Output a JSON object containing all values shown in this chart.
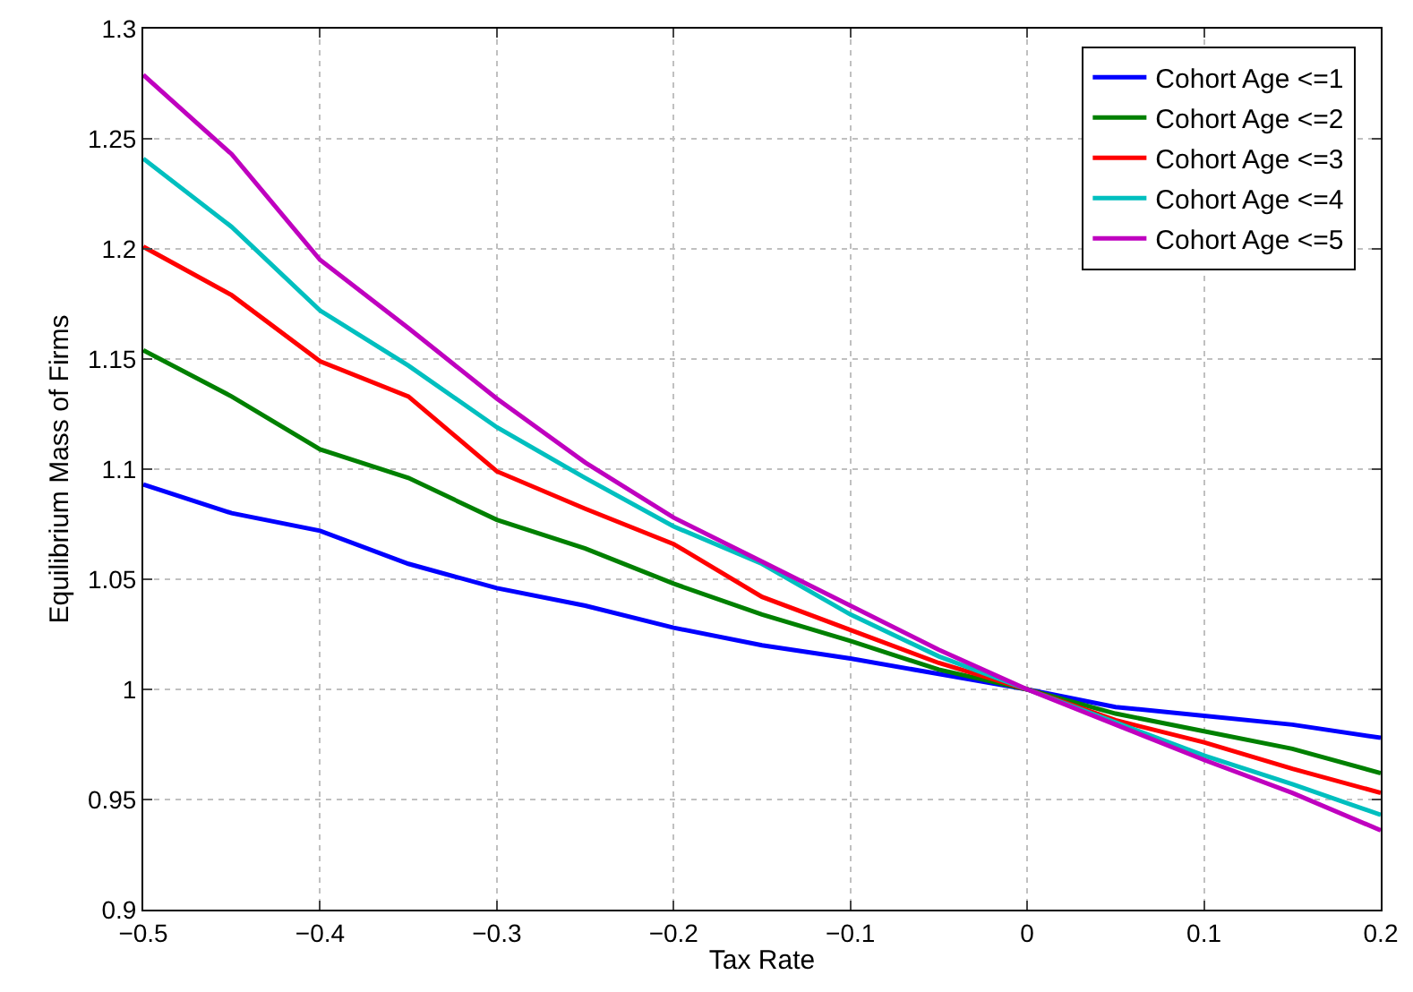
{
  "chart_data": {
    "type": "line",
    "xlabel": "Tax Rate",
    "ylabel": "Equilibrium Mass of Firms",
    "x": [
      -0.5,
      -0.45,
      -0.4,
      -0.35,
      -0.3,
      -0.25,
      -0.2,
      -0.15,
      -0.1,
      -0.05,
      0,
      0.05,
      0.1,
      0.15,
      0.2
    ],
    "series": [
      {
        "name": "Cohort Age <=1",
        "color": "#0000ff",
        "values": [
          1.093,
          1.08,
          1.072,
          1.057,
          1.046,
          1.038,
          1.028,
          1.02,
          1.014,
          1.007,
          1.0,
          0.992,
          0.988,
          0.984,
          0.978
        ]
      },
      {
        "name": "Cohort Age <=2",
        "color": "#008000",
        "values": [
          1.154,
          1.133,
          1.109,
          1.096,
          1.077,
          1.064,
          1.048,
          1.034,
          1.022,
          1.009,
          1.0,
          0.989,
          0.981,
          0.973,
          0.962
        ]
      },
      {
        "name": "Cohort Age <=3",
        "color": "#ff0000",
        "values": [
          1.201,
          1.179,
          1.149,
          1.133,
          1.099,
          1.082,
          1.066,
          1.042,
          1.027,
          1.012,
          1.0,
          0.986,
          0.976,
          0.964,
          0.953
        ]
      },
      {
        "name": "Cohort Age <=4",
        "color": "#00bfbf",
        "values": [
          1.241,
          1.21,
          1.172,
          1.147,
          1.119,
          1.096,
          1.074,
          1.057,
          1.034,
          1.015,
          1.0,
          0.985,
          0.97,
          0.957,
          0.943
        ]
      },
      {
        "name": "Cohort Age <=5",
        "color": "#bf00bf",
        "values": [
          1.279,
          1.243,
          1.195,
          1.164,
          1.132,
          1.103,
          1.078,
          1.058,
          1.038,
          1.018,
          1.0,
          0.984,
          0.968,
          0.953,
          0.936
        ]
      }
    ],
    "xlim": [
      -0.5,
      0.2
    ],
    "xticks": [
      {
        "value": -0.5,
        "label": "−0.5"
      },
      {
        "value": -0.4,
        "label": "−0.4"
      },
      {
        "value": -0.3,
        "label": "−0.3"
      },
      {
        "value": -0.2,
        "label": "−0.2"
      },
      {
        "value": -0.1,
        "label": "−0.1"
      },
      0,
      0.1,
      0.2
    ],
    "ylim": [
      0.9,
      1.3
    ],
    "yticks": [
      0.9,
      0.95,
      1,
      1.05,
      1.1,
      1.15,
      1.2,
      1.25,
      1.3
    ],
    "grid": true,
    "legend": "top right",
    "line_style": "solid"
  }
}
